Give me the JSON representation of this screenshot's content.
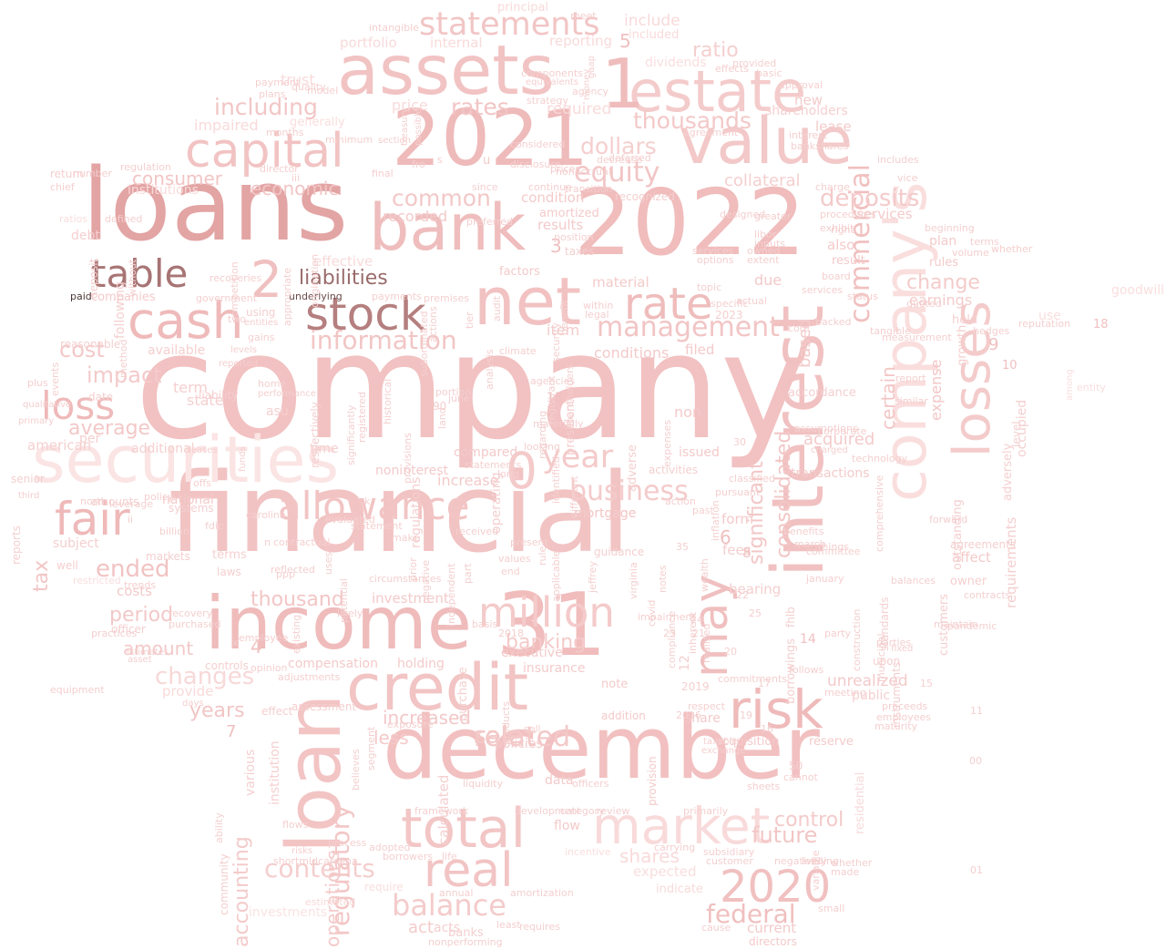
{
  "word_cloud": {
    "words": [
      "company",
      "financial",
      "loans",
      "december",
      "2022",
      "2021",
      "income",
      "interest",
      "loan",
      "securities",
      "31",
      "bank",
      "net",
      "assets",
      "value",
      "credit",
      "company's",
      "total",
      "estate",
      "losses",
      "market",
      "capital",
      "risk",
      "cash",
      "may",
      "stock",
      "allowance",
      "real",
      "fair",
      "table",
      "loss",
      "million",
      "rate",
      "statements",
      "2020",
      "1",
      "0",
      "2",
      "information",
      "management",
      "liabilities",
      "business",
      "commercial",
      "equity",
      "deposits",
      "year",
      "balance",
      "federal",
      "changes",
      "related",
      "contents",
      "thousand",
      "banking",
      "including",
      "rates",
      "common",
      "thousands",
      "dollars",
      "economic",
      "consumer",
      "ended",
      "period",
      "amount",
      "average",
      "cost",
      "impact",
      "tax",
      "regulatory",
      "operations",
      "accounting",
      "future",
      "control",
      "shares",
      "expected",
      "sale",
      "increased",
      "less",
      "consolidated",
      "significant",
      "certain",
      "expense",
      "change",
      "earnings",
      "collateral",
      "ratio",
      "portfolio",
      "internal",
      "reporting",
      "include",
      "included",
      "principal",
      "dividends",
      "required",
      "price",
      "trust",
      "institutions",
      "impaired",
      "generally",
      "effective",
      "recorded",
      "condition",
      "amortized",
      "results",
      "factors",
      "material",
      "mortgage",
      "form",
      "services",
      "also",
      "result",
      "plan",
      "rules",
      "unrealized",
      "acquired",
      "transactions",
      "mortgage",
      "investment",
      "compensation",
      "holding",
      "insurance",
      "executive",
      "provision",
      "acquisition",
      "reserve",
      "share",
      "non",
      "issued",
      "noninterest",
      "compared",
      "national",
      "subject",
      "available",
      "terms",
      "laws",
      "years",
      "provide",
      "data",
      "note",
      "addition",
      "policies",
      "flow",
      "acts",
      "banks",
      "current",
      "directors",
      "investments",
      "act",
      "companies",
      "item",
      "due",
      "new",
      "lease",
      "shareholders",
      "based",
      "fees",
      "costs",
      "officer",
      "well",
      "affect",
      "owner",
      "agreements",
      "customers",
      "outstanding",
      "requirements",
      "occupied",
      "adversely",
      "level",
      "held",
      "growth",
      "public",
      "upon",
      "instruments",
      "standards",
      "residential",
      "borrowings",
      "fhlb",
      "asu",
      "effect",
      "term",
      "state",
      "date",
      "per",
      "debt",
      "deposit",
      "following",
      "american",
      "additional",
      "time",
      "increase",
      "conditions",
      "filed",
      "goodwill",
      "use",
      "bearing",
      "commitments",
      "institution",
      "various",
      "assessment",
      "liability",
      "amounts",
      "reasonable",
      "respectively",
      "regulations",
      "operating",
      "president",
      "adverse",
      "activities",
      "12",
      "5",
      "3",
      "4",
      "6",
      "7",
      "8",
      "9",
      "10",
      "13",
      "14",
      "18",
      "30",
      "50",
      "90",
      "2019",
      "2023",
      "2016",
      "2018",
      "reported",
      "purchase",
      "senior",
      "systems",
      "markets",
      "accordance",
      "return",
      "chief",
      "ratios",
      "quality",
      "payment",
      "plans",
      "model",
      "section",
      "months",
      "minimum",
      "director",
      "disclosure",
      "prices",
      "deferred",
      "recognized",
      "taxes",
      "position",
      "agency",
      "approval",
      "provided",
      "basic",
      "effects",
      "includes",
      "vice",
      "exhibit",
      "backed",
      "services",
      "board",
      "status",
      "committee",
      "benefits",
      "january",
      "march",
      "things",
      "assumptions",
      "corporate",
      "charged",
      "technology",
      "report",
      "similar",
      "entity",
      "among",
      "reputation",
      "hedges",
      "forward",
      "balances",
      "contracts",
      "pandemic",
      "maintain",
      "parties",
      "fixed",
      "proceeds",
      "employees",
      "maturity",
      "cannot",
      "sheets",
      "primarily",
      "subsidiary",
      "customer",
      "carrying",
      "incentive",
      "category",
      "review",
      "framework",
      "development",
      "annual",
      "nonperforming",
      "amortization",
      "least",
      "life",
      "borrowers",
      "adopted",
      "process",
      "flows",
      "risks",
      "community",
      "ability",
      "equipment",
      "trends",
      "recovery",
      "purchased",
      "practices",
      "controls",
      "days",
      "asset",
      "estimates",
      "using",
      "entities",
      "gains",
      "levels",
      "home",
      "performance",
      "funds",
      "leases",
      "offs",
      "leverage",
      "policy",
      "north",
      "carolina",
      "billion",
      "fdic",
      "third",
      "reports",
      "primary",
      "qualitative",
      "plus",
      "events",
      "paid",
      "underlying",
      "premises",
      "payments",
      "tier",
      "analysis",
      "audit",
      "agencies",
      "climate",
      "security",
      "within",
      "legal",
      "benefit",
      "specific",
      "topic",
      "services",
      "options",
      "libor",
      "inputs",
      "owned",
      "extent",
      "actual",
      "core",
      "tangible",
      "measurement",
      "quoted",
      "volume",
      "beginning",
      "whether",
      "agreement",
      "interest",
      "bankshares",
      "intangible",
      "gaap",
      "money",
      "treasury",
      "possible",
      "components",
      "equivalents",
      "meet",
      "strategy",
      "nonaccrual",
      "considered",
      "final",
      "since",
      "continue",
      "transition",
      "decrease",
      "respect",
      "taxable",
      "exchange",
      "sell",
      "products",
      "exposure",
      "believes",
      "segment",
      "calculated",
      "liquidity",
      "officers",
      "jeffrey",
      "guidance",
      "virginia",
      "wealth",
      "impairment",
      "compliance",
      "covid",
      "realized",
      "inherent",
      "notes",
      "applicable",
      "independent",
      "negative",
      "prior",
      "part",
      "end",
      "values",
      "present",
      "rule",
      "basis",
      "received",
      "statement",
      "make",
      "evaluated",
      "circumstances",
      "reflected",
      "ppp",
      "uses",
      "potential",
      "likely",
      "existing",
      "employee",
      "opinion",
      "adjustments",
      "restricted",
      "contractual",
      "follows",
      "meeting",
      "party",
      "construction",
      "municipal",
      "comprehensive",
      "registrant",
      "shareholders",
      "expenses",
      "classified",
      "pursuant",
      "past",
      "action",
      "inflation",
      "different",
      "regarding",
      "materially",
      "long",
      "looking",
      "identified",
      "provisions",
      "historical",
      "registered",
      "significantly",
      "land",
      "portion",
      "june",
      "statements",
      "actions",
      "subordinated",
      "preferred",
      "greater",
      "procedures",
      "right",
      "terms",
      "whether",
      "made",
      "small",
      "cause",
      "requires",
      "variable",
      "negatively",
      "lending",
      "shortmidcarolina",
      "indicate",
      "require",
      "estimated",
      "designed",
      "charge",
      "origination",
      "appropriate",
      "without",
      "two",
      "method",
      "government",
      "recoveries",
      "defined",
      "competition",
      "number",
      "regulation",
      "u",
      "fro",
      "s",
      "k",
      "x",
      "n",
      "ii",
      "iii",
      "01",
      "00",
      "11",
      "15",
      "16",
      "17",
      "19",
      "20",
      "21",
      "22",
      "23",
      "24",
      "25",
      "35",
      "36",
      "40",
      "43",
      "59",
      "89"
    ]
  }
}
